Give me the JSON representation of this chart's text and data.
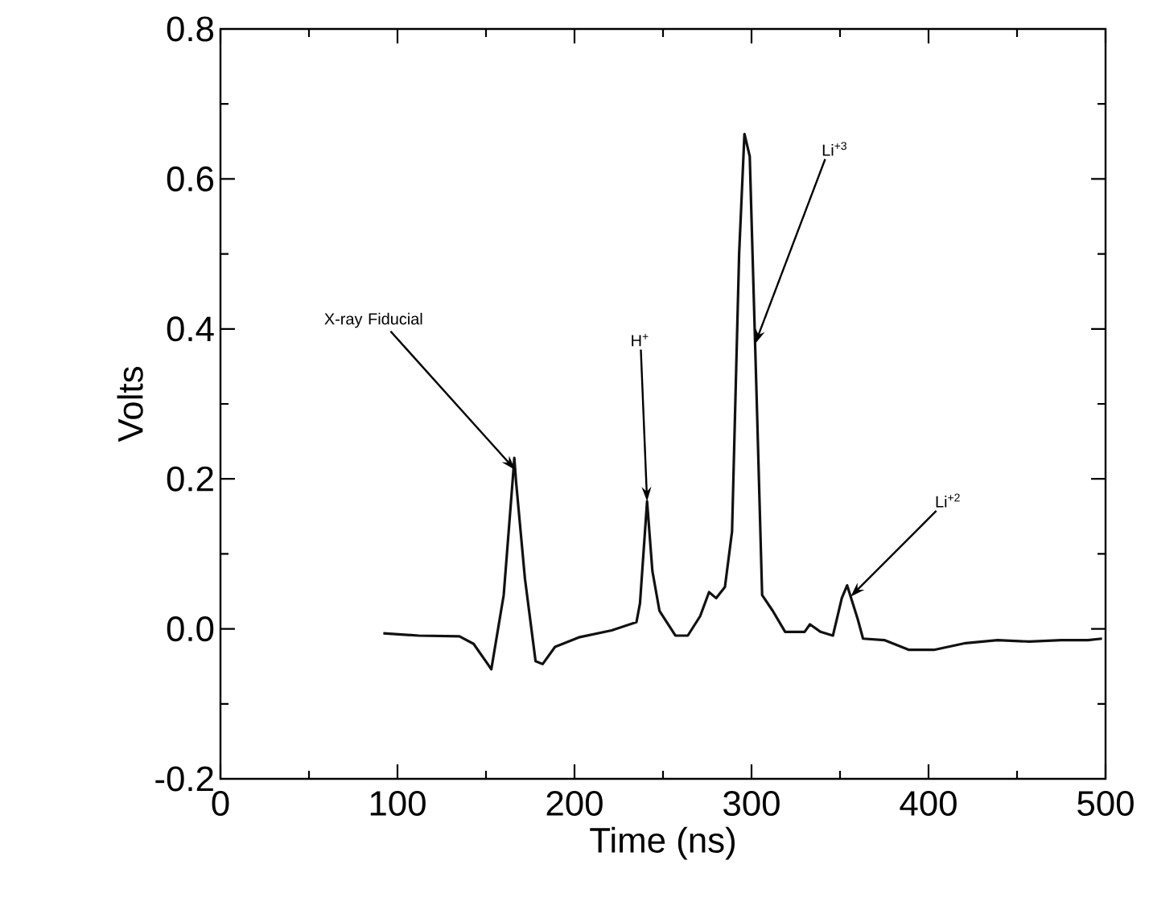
{
  "chart_data": {
    "type": "line",
    "xlabel": "Time (ns)",
    "ylabel": "Volts",
    "xlim": [
      0,
      500
    ],
    "ylim": [
      -0.2,
      0.8
    ],
    "xticks": [
      0,
      100,
      200,
      300,
      400,
      500
    ],
    "yticks": [
      {
        "value": -0.2,
        "label": "-0.2"
      },
      {
        "value": 0,
        "label": "0.0"
      },
      {
        "value": 0.2,
        "label": "0.2"
      },
      {
        "value": 0.4,
        "label": "0.4"
      },
      {
        "value": 0.6,
        "label": "0.6"
      },
      {
        "value": 0.8,
        "label": "0.8"
      }
    ],
    "grid": false,
    "marker": "none",
    "line_style": "solid",
    "x": [
      92,
      112,
      135,
      143,
      151,
      153,
      160,
      165,
      166,
      167,
      172,
      178,
      182,
      189,
      203,
      221,
      235,
      237,
      241,
      244,
      248,
      257,
      264,
      271,
      276,
      280,
      285,
      289,
      293,
      296,
      299,
      303,
      306,
      312,
      319,
      330,
      333,
      339,
      346,
      351,
      354,
      360,
      363,
      375,
      389,
      403,
      421,
      439,
      457,
      475,
      490,
      498
    ],
    "series": [
      {
        "color": "#111111",
        "values": [
          -0.006,
          -0.009,
          -0.01,
          -0.02,
          -0.047,
          -0.054,
          0.045,
          0.196,
          0.228,
          0.196,
          0.067,
          -0.043,
          -0.047,
          -0.024,
          -0.011,
          -0.002,
          0.009,
          0.034,
          0.17,
          0.077,
          0.024,
          -0.009,
          -0.009,
          0.017,
          0.049,
          0.041,
          0.056,
          0.13,
          0.5,
          0.66,
          0.63,
          0.3,
          0.045,
          0.024,
          -0.004,
          -0.004,
          0.006,
          -0.004,
          -0.009,
          0.041,
          0.058,
          0.013,
          -0.013,
          -0.015,
          -0.028,
          -0.028,
          -0.019,
          -0.015,
          -0.017,
          -0.015,
          -0.015,
          -0.013
        ]
      }
    ],
    "annotations": [
      {
        "text": "X-ray Fiducial",
        "x": 166.5,
        "y": 0.212
      },
      {
        "text": "H$^{+}$",
        "x": 241,
        "y": 0.17
      },
      {
        "text": "Li$^{+3}$",
        "x": 302,
        "y": 0.38
      },
      {
        "text": "Li$^{+2}$",
        "x": 356,
        "y": 0.043
      }
    ]
  }
}
